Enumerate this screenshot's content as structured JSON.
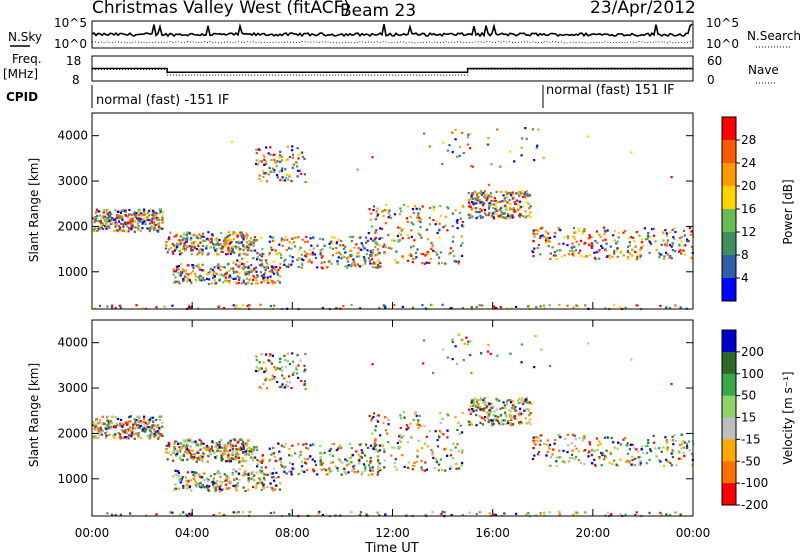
{
  "header": {
    "station": "Christmas Valley West (fitACF)",
    "beam": "Beam 23",
    "date": "23/Apr/2012"
  },
  "colors": {
    "power_scale": [
      "#0000ff",
      "#2f5fa8",
      "#3f8f5f",
      "#66bb55",
      "#ffd400",
      "#ff9a00",
      "#ff5a00",
      "#ff0000"
    ],
    "velocity_scale": [
      "#0000cc",
      "#2a6a2a",
      "#3aa64a",
      "#8cd46a",
      "#bebebe",
      "#ffaa00",
      "#ff7000",
      "#ff0000"
    ]
  },
  "chart_data": [
    {
      "name": "noise-panel",
      "type": "line",
      "left_label": "N.Sky",
      "right_label": "N.Search",
      "ticks_left": [
        "10^5",
        "10^0"
      ],
      "ticks_right": [
        "10^5",
        "10^0"
      ]
    },
    {
      "name": "frequency-panel",
      "type": "line",
      "left_label": "Freq.",
      "left_unit": "[MHz]",
      "right_label": "Nave",
      "ticks_left": [
        "18",
        "8"
      ],
      "ticks_right": [
        "60",
        "0"
      ],
      "x_break_hours": [
        3,
        15
      ],
      "freq_levels": [
        13,
        11.5
      ],
      "nave_levels": [
        28,
        14
      ]
    },
    {
      "name": "cpid-panel",
      "type": "table",
      "label": "CPID",
      "segments": [
        {
          "start_hour": 0,
          "text": "normal (fast) -151 IF"
        },
        {
          "start_hour": 18,
          "text": "normal (fast) 151 IF"
        }
      ]
    },
    {
      "name": "power-panel",
      "type": "heatmap",
      "ylabel": "Slant Range [km]",
      "y_ticks": [
        "1000",
        "2000",
        "3000",
        "4000"
      ],
      "ylim": [
        180,
        4500
      ],
      "colorbar_label": "Power [dB]",
      "colorbar_ticks": [
        "4",
        "8",
        "12",
        "16",
        "20",
        "24",
        "28"
      ]
    },
    {
      "name": "velocity-panel",
      "type": "heatmap",
      "ylabel": "Slant Range [km]",
      "y_ticks": [
        "1000",
        "2000",
        "3000",
        "4000"
      ],
      "ylim": [
        180,
        4500
      ],
      "colorbar_label": "Velocity [m s⁻¹]",
      "colorbar_ticks": [
        "200",
        "100",
        "50",
        "15",
        "-15",
        "-50",
        "-100",
        "-200"
      ]
    }
  ],
  "x_axis": {
    "label": "Time UT",
    "xlim_hours": [
      0,
      24
    ],
    "tick_labels": [
      "00:00",
      "04:00",
      "08:00",
      "12:00",
      "16:00",
      "20:00",
      "00:00"
    ]
  }
}
